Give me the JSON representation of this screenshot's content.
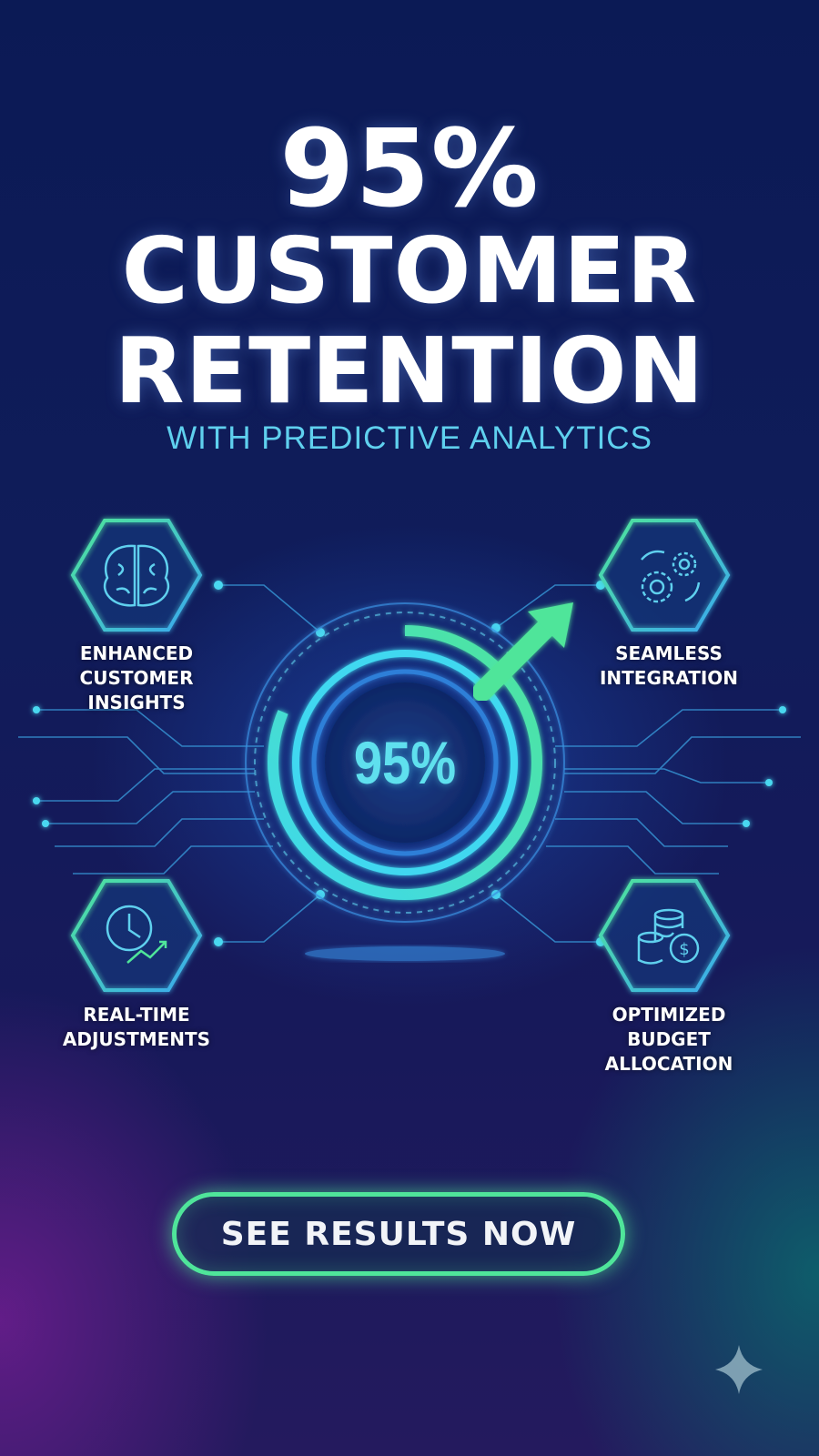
{
  "headline": {
    "line1": "95%",
    "line2": "CUSTOMER",
    "line3": "RETENTION",
    "subtitle": "WITH PREDICTIVE ANALYTICS"
  },
  "gauge": {
    "value_label": "95%",
    "value_percent": 95
  },
  "features": [
    {
      "icon": "brain-icon",
      "label_lines": [
        "ENHANCED",
        "CUSTOMER",
        "INSIGHTS"
      ]
    },
    {
      "icon": "gears-icon",
      "label_lines": [
        "SEAMLESS",
        "INTEGRATION"
      ]
    },
    {
      "icon": "clock-trend-icon",
      "label_lines": [
        "REAL-TIME",
        "ADJUSTMENTS"
      ]
    },
    {
      "icon": "coins-dollar-icon",
      "label_lines": [
        "OPTIMIZED",
        "BUDGET",
        "ALLOCATION"
      ]
    }
  ],
  "cta": {
    "label": "SEE RESULTS NOW"
  },
  "colors": {
    "accent_green": "#4fe59a",
    "accent_cyan": "#5fd0ee",
    "background": "#101c5a"
  }
}
